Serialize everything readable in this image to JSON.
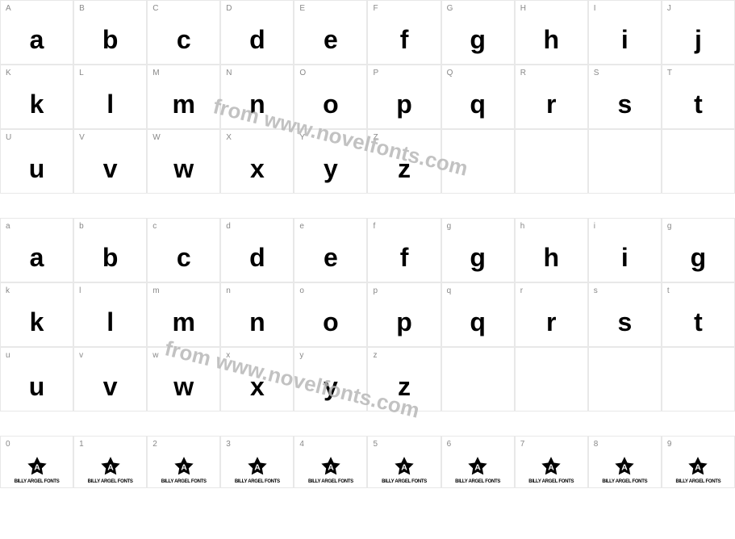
{
  "watermark_text": "from www.novelfonts.com",
  "colors": {
    "border": "#e8e8e8",
    "label": "#888888",
    "glyph": "#000000",
    "watermark": "#b8b8b8",
    "background": "#ffffff"
  },
  "uppercase_row1": [
    {
      "label": "A",
      "glyph": "a"
    },
    {
      "label": "B",
      "glyph": "b"
    },
    {
      "label": "C",
      "glyph": "c"
    },
    {
      "label": "D",
      "glyph": "d"
    },
    {
      "label": "E",
      "glyph": "e"
    },
    {
      "label": "F",
      "glyph": "f"
    },
    {
      "label": "G",
      "glyph": "g"
    },
    {
      "label": "H",
      "glyph": "h"
    },
    {
      "label": "I",
      "glyph": "i"
    },
    {
      "label": "J",
      "glyph": "j"
    }
  ],
  "uppercase_row2": [
    {
      "label": "K",
      "glyph": "k"
    },
    {
      "label": "L",
      "glyph": "l"
    },
    {
      "label": "M",
      "glyph": "m"
    },
    {
      "label": "N",
      "glyph": "n"
    },
    {
      "label": "O",
      "glyph": "o"
    },
    {
      "label": "P",
      "glyph": "p"
    },
    {
      "label": "Q",
      "glyph": "q"
    },
    {
      "label": "R",
      "glyph": "r"
    },
    {
      "label": "S",
      "glyph": "s"
    },
    {
      "label": "T",
      "glyph": "t"
    }
  ],
  "uppercase_row3": [
    {
      "label": "U",
      "glyph": "u"
    },
    {
      "label": "V",
      "glyph": "v"
    },
    {
      "label": "W",
      "glyph": "w"
    },
    {
      "label": "X",
      "glyph": "x"
    },
    {
      "label": "Y",
      "glyph": "y"
    },
    {
      "label": "Z",
      "glyph": "z"
    }
  ],
  "lowercase_row1": [
    {
      "label": "a",
      "glyph": "a"
    },
    {
      "label": "b",
      "glyph": "b"
    },
    {
      "label": "c",
      "glyph": "c"
    },
    {
      "label": "d",
      "glyph": "d"
    },
    {
      "label": "e",
      "glyph": "e"
    },
    {
      "label": "f",
      "glyph": "f"
    },
    {
      "label": "g",
      "glyph": "g"
    },
    {
      "label": "h",
      "glyph": "h"
    },
    {
      "label": "i",
      "glyph": "i"
    },
    {
      "label": "g",
      "glyph": "g"
    }
  ],
  "lowercase_row2": [
    {
      "label": "k",
      "glyph": "k"
    },
    {
      "label": "l",
      "glyph": "l"
    },
    {
      "label": "m",
      "glyph": "m"
    },
    {
      "label": "n",
      "glyph": "n"
    },
    {
      "label": "o",
      "glyph": "o"
    },
    {
      "label": "p",
      "glyph": "p"
    },
    {
      "label": "q",
      "glyph": "q"
    },
    {
      "label": "r",
      "glyph": "r"
    },
    {
      "label": "s",
      "glyph": "s"
    },
    {
      "label": "t",
      "glyph": "t"
    }
  ],
  "lowercase_row3": [
    {
      "label": "u",
      "glyph": "u"
    },
    {
      "label": "v",
      "glyph": "v"
    },
    {
      "label": "w",
      "glyph": "w"
    },
    {
      "label": "x",
      "glyph": "x"
    },
    {
      "label": "y",
      "glyph": "y"
    },
    {
      "label": "z",
      "glyph": "z"
    }
  ],
  "digits": [
    {
      "label": "0"
    },
    {
      "label": "1"
    },
    {
      "label": "2"
    },
    {
      "label": "3"
    },
    {
      "label": "4"
    },
    {
      "label": "5"
    },
    {
      "label": "6"
    },
    {
      "label": "7"
    },
    {
      "label": "8"
    },
    {
      "label": "9"
    }
  ],
  "star_letter": "A",
  "star_caption": "BILLY ARGEL FONTS"
}
